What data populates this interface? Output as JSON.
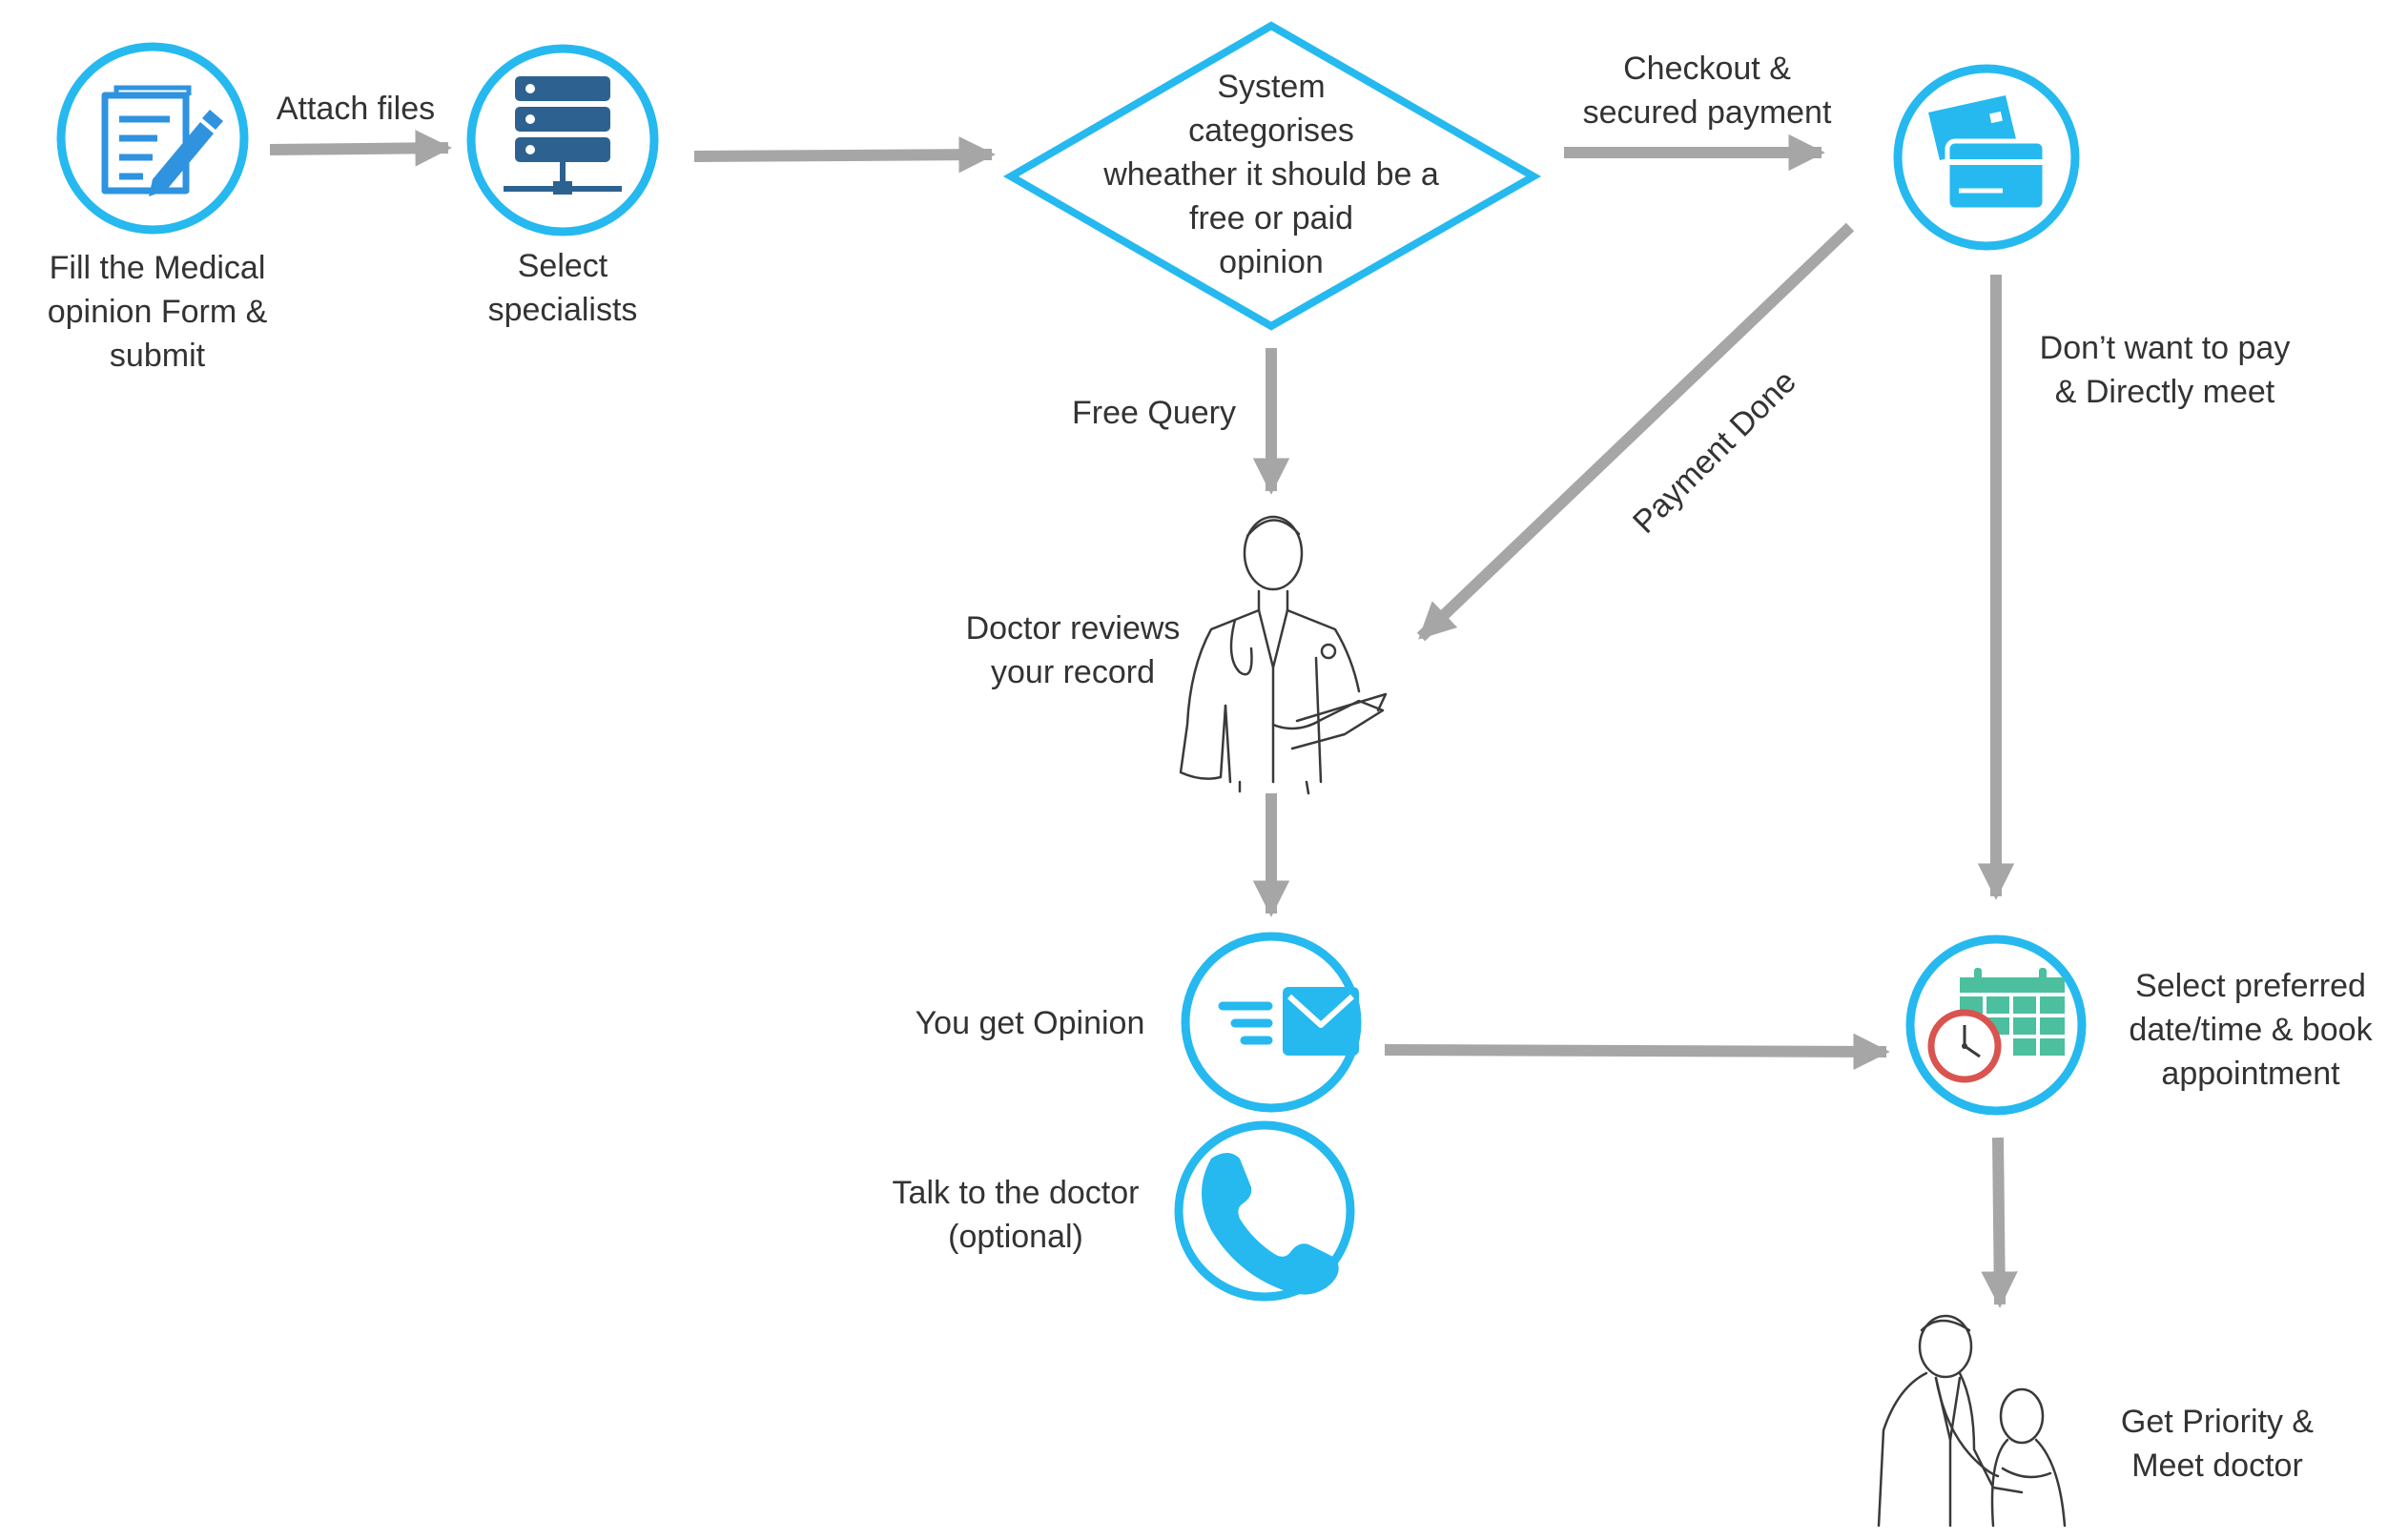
{
  "colors": {
    "accent": "#25b9ef",
    "arrow": "#a6a6a6",
    "form_icon": "#2f93e0",
    "server_icon": "#2d6290",
    "calendar_icon": "#4cbf9f",
    "clock_ring": "#d9534f",
    "sketch": "#3a3a3a"
  },
  "nodes": {
    "fill_form": {
      "icon": "form-edit-icon",
      "lines": [
        "Fill the Medical",
        "opinion Form &",
        "submit"
      ]
    },
    "select_specialists": {
      "icon": "server-icon",
      "lines": [
        "Select",
        "specialists"
      ]
    },
    "categorise": {
      "lines": [
        "System",
        "categorises",
        "wheather it should be a",
        "free or paid",
        "opinion"
      ]
    },
    "checkout": {
      "icon": "credit-card-icon"
    },
    "doctor_review": {
      "icon": "doctor-sketch-icon",
      "lines": [
        "Doctor reviews",
        "your record"
      ]
    },
    "get_opinion": {
      "icon": "email-icon",
      "lines": [
        "You get Opinion"
      ]
    },
    "talk_doctor": {
      "icon": "phone-icon",
      "lines": [
        "Talk to the doctor",
        "(optional)"
      ]
    },
    "book_appointment": {
      "icon": "calendar-clock-icon",
      "lines": [
        "Select preferred",
        "date/time & book",
        "appointment"
      ]
    },
    "meet_doctor": {
      "icon": "doctor-patient-sketch-icon",
      "lines": [
        "Get Priority &",
        "Meet doctor"
      ]
    }
  },
  "edges": {
    "attach_files": {
      "lines": [
        "Attach files"
      ]
    },
    "checkout_payment": {
      "lines": [
        "Checkout &",
        "secured payment"
      ]
    },
    "free_query": {
      "lines": [
        "Free Query"
      ]
    },
    "payment_done": {
      "lines": [
        "Payment Done"
      ]
    },
    "direct_meet": {
      "lines": [
        "Don’t want to pay",
        "& Directly meet"
      ]
    }
  }
}
